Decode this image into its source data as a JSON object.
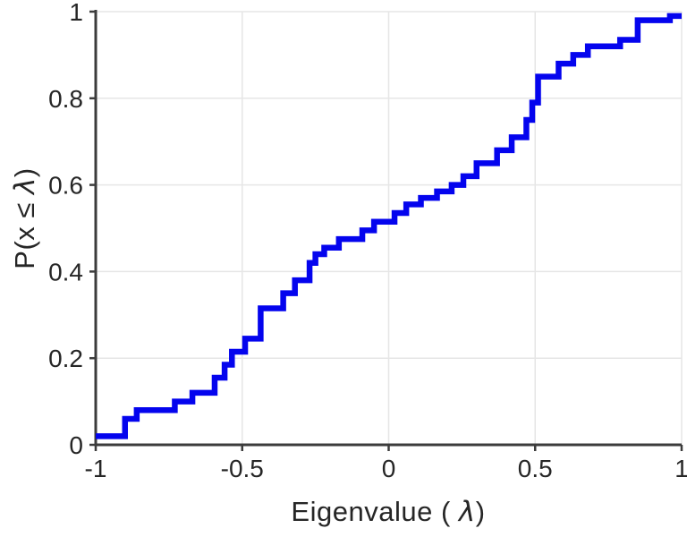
{
  "figure": {
    "background": "#ffffff",
    "xlabel": {
      "prefix": "Eigenvalue ( ",
      "symbol": "λ",
      "suffix": ")"
    },
    "ylabel": {
      "prefix": "P(x ",
      "operator": "≤ ",
      "symbol": "λ",
      "suffix": ")"
    }
  },
  "chart_data": {
    "type": "line",
    "subtype": "ecdf-step",
    "title": "",
    "xlabel": "Eigenvalue ( λ)",
    "ylabel": "P(x ≤ λ)",
    "xlim": [
      -1,
      1
    ],
    "ylim": [
      0,
      1
    ],
    "x_ticks": [
      -1,
      -0.5,
      0,
      0.5,
      1
    ],
    "x_tick_labels": [
      "-1",
      "-0.5",
      "0",
      "0.5",
      "1"
    ],
    "y_ticks": [
      0,
      0.2,
      0.4,
      0.6,
      0.8,
      1
    ],
    "y_tick_labels": [
      "0",
      "0.2",
      "0.4",
      "0.6",
      "0.8",
      "1"
    ],
    "grid": true,
    "legend": null,
    "line_color": "#0404ee",
    "line_width": 6.5,
    "grid_color": "#e6e6e6",
    "axis_color": "#3c3c3c",
    "tick_label_color": "#262626",
    "steps_note": "each pair is [eigenvalue, cumulative probability after the jump]; curve starts at lambda=-1 and extends flat to lambda=1",
    "steps": [
      [
        -1.0,
        0.02
      ],
      [
        -0.9,
        0.06
      ],
      [
        -0.86,
        0.08
      ],
      [
        -0.73,
        0.1
      ],
      [
        -0.67,
        0.12
      ],
      [
        -0.594,
        0.155
      ],
      [
        -0.56,
        0.185
      ],
      [
        -0.535,
        0.215
      ],
      [
        -0.49,
        0.245
      ],
      [
        -0.437,
        0.315
      ],
      [
        -0.36,
        0.35
      ],
      [
        -0.32,
        0.38
      ],
      [
        -0.27,
        0.42
      ],
      [
        -0.25,
        0.44
      ],
      [
        -0.22,
        0.455
      ],
      [
        -0.17,
        0.475
      ],
      [
        -0.09,
        0.495
      ],
      [
        -0.05,
        0.515
      ],
      [
        0.02,
        0.535
      ],
      [
        0.06,
        0.555
      ],
      [
        0.11,
        0.57
      ],
      [
        0.165,
        0.585
      ],
      [
        0.215,
        0.6
      ],
      [
        0.255,
        0.62
      ],
      [
        0.3,
        0.65
      ],
      [
        0.37,
        0.68
      ],
      [
        0.42,
        0.71
      ],
      [
        0.47,
        0.75
      ],
      [
        0.49,
        0.79
      ],
      [
        0.51,
        0.85
      ],
      [
        0.58,
        0.88
      ],
      [
        0.63,
        0.9
      ],
      [
        0.68,
        0.92
      ],
      [
        0.79,
        0.935
      ],
      [
        0.85,
        0.98
      ],
      [
        0.96,
        0.99
      ]
    ]
  }
}
